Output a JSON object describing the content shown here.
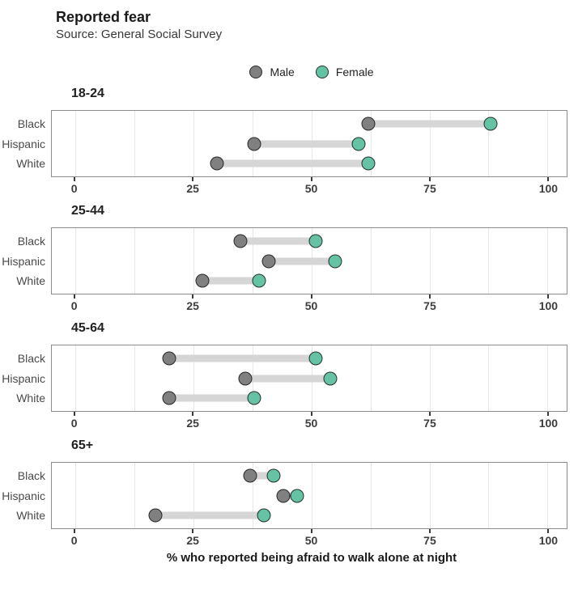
{
  "header": {
    "title": "Reported fear",
    "subtitle": "Source: General Social Survey"
  },
  "legend": {
    "items": [
      {
        "label": "Male",
        "color": "#808080"
      },
      {
        "label": "Female",
        "color": "#66c2a5"
      }
    ]
  },
  "colors": {
    "male_fill": "#808080",
    "female_fill": "#66c2a5",
    "dot_stroke": "#161616",
    "connector": "#d6d6d6",
    "gridline": "#e7e7e7",
    "panel_border": "#8c8c8c"
  },
  "chart_data": {
    "type": "scatter",
    "subtype": "dumbbell",
    "title": "Reported fear",
    "subtitle": "Source: General Social Survey",
    "xlabel": "% who reported being afraid to walk alone at night",
    "ylabel": "",
    "xlim": [
      0,
      100
    ],
    "x_ticks": [
      0,
      25,
      50,
      75,
      100
    ],
    "grid_step": 12.5,
    "grid": "on",
    "legend_position": "top-center",
    "series_names": [
      "Male",
      "Female"
    ],
    "categories": [
      "Black",
      "Hispanic",
      "White"
    ],
    "facets": [
      {
        "title": "18-24",
        "rows": [
          {
            "label": "Black",
            "male": 62,
            "female": 88
          },
          {
            "label": "Hispanic",
            "male": 38,
            "female": 60
          },
          {
            "label": "White",
            "male": 30,
            "female": 62
          }
        ]
      },
      {
        "title": "25-44",
        "rows": [
          {
            "label": "Black",
            "male": 35,
            "female": 51
          },
          {
            "label": "Hispanic",
            "male": 41,
            "female": 55
          },
          {
            "label": "White",
            "male": 27,
            "female": 39
          }
        ]
      },
      {
        "title": "45-64",
        "rows": [
          {
            "label": "Black",
            "male": 20,
            "female": 51
          },
          {
            "label": "Hispanic",
            "male": 36,
            "female": 54
          },
          {
            "label": "White",
            "male": 20,
            "female": 38
          }
        ]
      },
      {
        "title": "65+",
        "rows": [
          {
            "label": "Black",
            "male": 37,
            "female": 42
          },
          {
            "label": "Hispanic",
            "male": 44,
            "female": 47
          },
          {
            "label": "White",
            "male": 17,
            "female": 40
          }
        ]
      }
    ]
  }
}
